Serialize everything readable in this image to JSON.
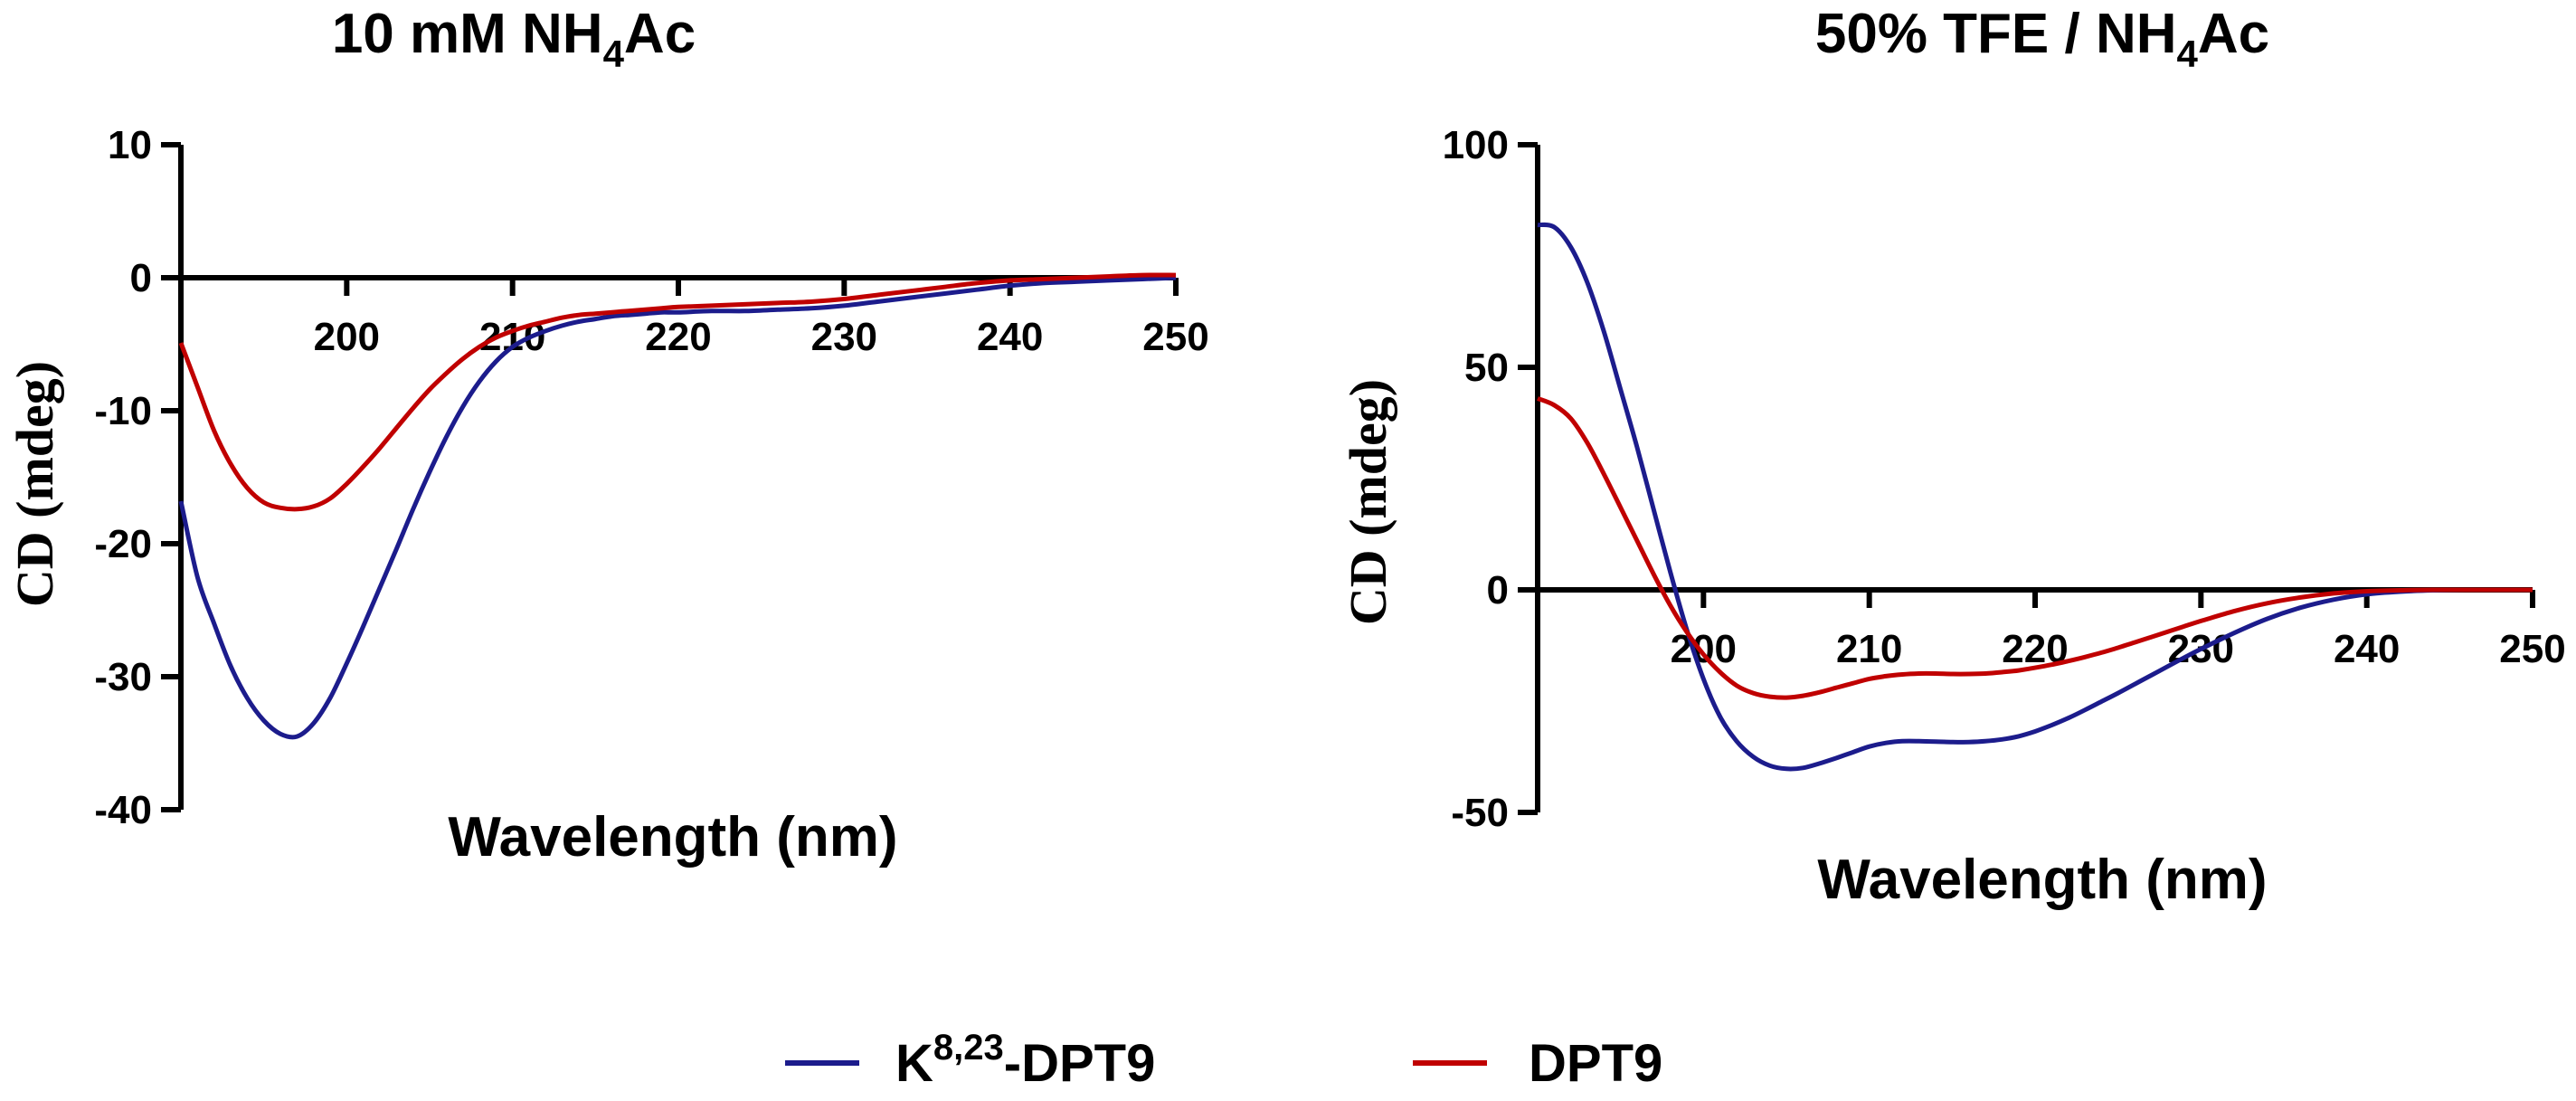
{
  "figure": "Circular dichroism spectra",
  "chart_data": [
    {
      "type": "line",
      "title": {
        "main": "10 mM NH",
        "sub": "4",
        "suffix": "Ac"
      },
      "xlabel": "Wavelength (nm)",
      "ylabel": "CD (mdeg)",
      "xlim": [
        190,
        250
      ],
      "ylim": [
        -40,
        10
      ],
      "xticks": [
        200,
        210,
        220,
        230,
        240,
        250
      ],
      "yticks": [
        10,
        0,
        -10,
        -20,
        -30,
        -40
      ],
      "grid": false,
      "series": [
        {
          "name": "K8,23-DPT9",
          "color": "#1c1c8c",
          "x": [
            190,
            191,
            192,
            193,
            194,
            195,
            196,
            197,
            198,
            199,
            200,
            201,
            202,
            203,
            204,
            205,
            206,
            207,
            208,
            209,
            210,
            211,
            212,
            213,
            214,
            215,
            216,
            217,
            218,
            219,
            220,
            222,
            224,
            226,
            228,
            230,
            232,
            234,
            236,
            238,
            240,
            242,
            244,
            246,
            248,
            250
          ],
          "y": [
            -16.8,
            -22.5,
            -26.0,
            -29.2,
            -31.6,
            -33.3,
            -34.3,
            -34.5,
            -33.5,
            -31.6,
            -29.0,
            -26.2,
            -23.3,
            -20.4,
            -17.4,
            -14.6,
            -12.0,
            -9.7,
            -7.8,
            -6.3,
            -5.2,
            -4.5,
            -4.0,
            -3.6,
            -3.3,
            -3.1,
            -2.9,
            -2.8,
            -2.7,
            -2.6,
            -2.6,
            -2.5,
            -2.5,
            -2.4,
            -2.3,
            -2.1,
            -1.8,
            -1.5,
            -1.2,
            -0.9,
            -0.6,
            -0.4,
            -0.3,
            -0.2,
            -0.1,
            0.0
          ]
        },
        {
          "name": "DPT9",
          "color": "#c00000",
          "x": [
            190,
            191,
            192,
            193,
            194,
            195,
            196,
            197,
            198,
            199,
            200,
            201,
            202,
            203,
            204,
            205,
            206,
            207,
            208,
            209,
            210,
            211,
            212,
            213,
            214,
            215,
            216,
            217,
            218,
            219,
            220,
            222,
            224,
            226,
            228,
            230,
            232,
            234,
            236,
            238,
            240,
            242,
            244,
            246,
            248,
            250
          ],
          "y": [
            -4.9,
            -8.2,
            -11.5,
            -14.0,
            -15.8,
            -16.9,
            -17.3,
            -17.4,
            -17.2,
            -16.6,
            -15.5,
            -14.2,
            -12.8,
            -11.3,
            -9.8,
            -8.4,
            -7.2,
            -6.1,
            -5.2,
            -4.5,
            -4.0,
            -3.6,
            -3.3,
            -3.0,
            -2.8,
            -2.7,
            -2.6,
            -2.5,
            -2.4,
            -2.3,
            -2.2,
            -2.1,
            -2.0,
            -1.9,
            -1.8,
            -1.6,
            -1.3,
            -1.0,
            -0.7,
            -0.4,
            -0.2,
            -0.1,
            0.0,
            0.1,
            0.2,
            0.2
          ]
        }
      ]
    },
    {
      "type": "line",
      "title": {
        "main": "50% TFE / NH",
        "sub": "4",
        "suffix": "Ac"
      },
      "xlabel": "Wavelength (nm)",
      "ylabel": "CD (mdeg)",
      "xlim": [
        190,
        250
      ],
      "ylim": [
        -50,
        100
      ],
      "xticks": [
        200,
        210,
        220,
        230,
        240,
        250
      ],
      "yticks": [
        100,
        50,
        0,
        -50
      ],
      "grid": false,
      "series": [
        {
          "name": "K8,23-DPT9",
          "color": "#1c1c8c",
          "x": [
            190,
            191,
            192,
            193,
            194,
            195,
            196,
            197,
            198,
            199,
            200,
            201,
            202,
            203,
            204,
            205,
            206,
            207,
            208,
            209,
            210,
            211,
            212,
            213,
            214,
            215,
            216,
            217,
            218,
            219,
            220,
            221,
            222,
            223,
            224,
            225,
            226,
            227,
            228,
            229,
            230,
            232,
            234,
            236,
            238,
            240,
            242,
            244,
            246,
            248,
            250
          ],
          "y": [
            82.0,
            81.5,
            77.0,
            69.0,
            58.0,
            45.0,
            32.0,
            18.0,
            4.0,
            -9.0,
            -20.0,
            -28.5,
            -34.0,
            -37.5,
            -39.5,
            -40.2,
            -40.0,
            -39.0,
            -37.8,
            -36.5,
            -35.2,
            -34.4,
            -34.0,
            -34.0,
            -34.1,
            -34.2,
            -34.2,
            -34.0,
            -33.6,
            -32.9,
            -31.8,
            -30.4,
            -28.8,
            -27.0,
            -25.1,
            -23.2,
            -21.2,
            -19.2,
            -17.2,
            -15.2,
            -13.3,
            -9.7,
            -6.5,
            -4.0,
            -2.2,
            -1.0,
            -0.4,
            -0.1,
            0.0,
            0.0,
            0.0
          ]
        },
        {
          "name": "DPT9",
          "color": "#c00000",
          "x": [
            190,
            191,
            192,
            193,
            194,
            195,
            196,
            197,
            198,
            199,
            200,
            201,
            202,
            203,
            204,
            205,
            206,
            207,
            208,
            209,
            210,
            211,
            212,
            213,
            214,
            215,
            216,
            217,
            218,
            219,
            220,
            221,
            222,
            223,
            224,
            225,
            226,
            227,
            228,
            229,
            230,
            232,
            234,
            236,
            238,
            240,
            242,
            244,
            246,
            248,
            250
          ],
          "y": [
            43.0,
            41.5,
            38.5,
            33.0,
            26.0,
            18.5,
            11.0,
            3.5,
            -3.5,
            -9.5,
            -14.5,
            -18.5,
            -21.5,
            -23.2,
            -24.0,
            -24.2,
            -23.8,
            -23.0,
            -22.0,
            -21.0,
            -20.0,
            -19.4,
            -19.0,
            -18.8,
            -18.8,
            -18.9,
            -18.9,
            -18.8,
            -18.5,
            -18.1,
            -17.5,
            -16.8,
            -16.0,
            -15.1,
            -14.1,
            -13.0,
            -11.8,
            -10.6,
            -9.4,
            -8.2,
            -7.0,
            -4.8,
            -3.0,
            -1.7,
            -0.8,
            -0.3,
            -0.1,
            0.0,
            0.0,
            0.0,
            0.0
          ]
        }
      ]
    }
  ],
  "legend": [
    {
      "name": "K",
      "sup": "8,23",
      "suffix": "-DPT9",
      "color": "#1c1c8c"
    },
    {
      "name": "DPT9",
      "sup": "",
      "suffix": "",
      "color": "#c00000"
    }
  ]
}
